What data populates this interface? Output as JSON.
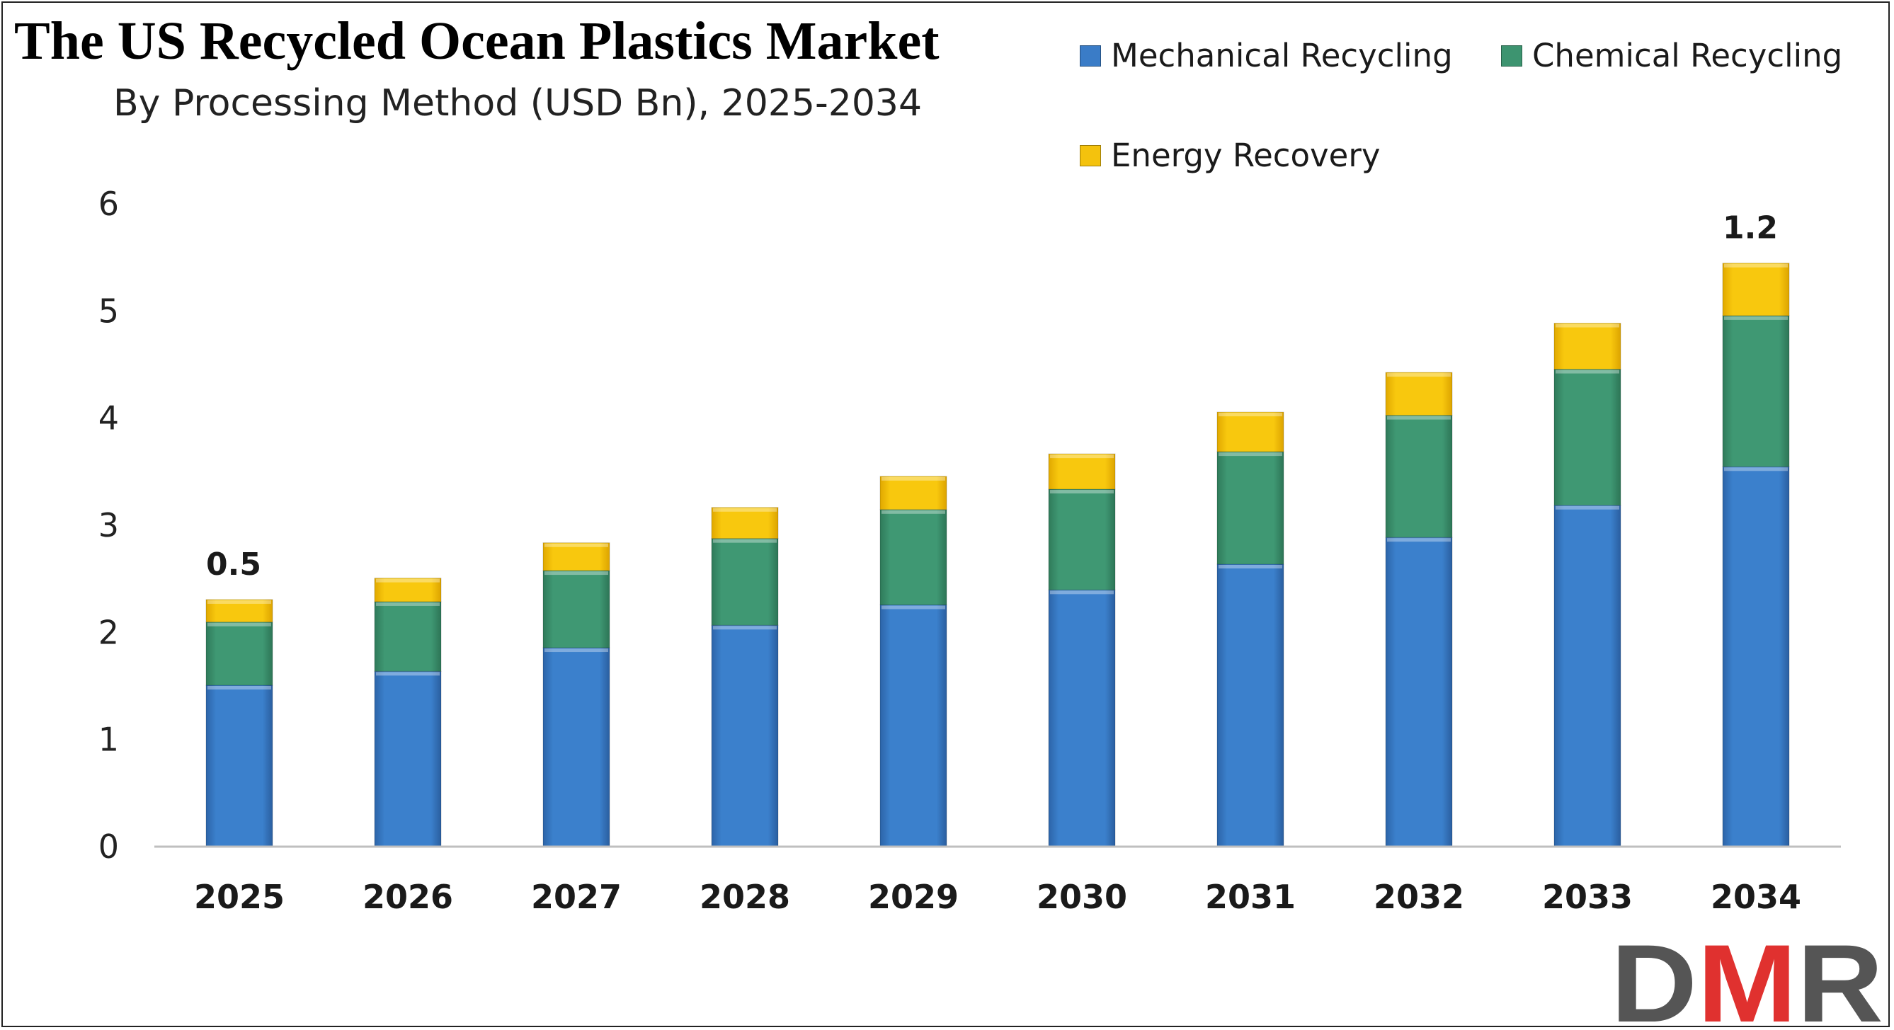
{
  "title": "The US Recycled Ocean Plastics Market",
  "subtitle": "By Processing Method (USD Bn), 2025-2034",
  "logo_text": "DMR",
  "colors": {
    "mechanical": "#3a7cc7",
    "chemical": "#3d9470",
    "energy": "#f4c20d",
    "axis": "#bfbfbf",
    "logo_dark": "#555555",
    "logo_red": "#e0312f"
  },
  "chart_data": {
    "type": "bar",
    "stacked": true,
    "categories": [
      "2025",
      "2026",
      "2027",
      "2028",
      "2029",
      "2030",
      "2031",
      "2032",
      "2033",
      "2034"
    ],
    "series": [
      {
        "name": "Mechanical Recycling",
        "values": [
          1.5,
          1.63,
          1.85,
          2.06,
          2.25,
          2.39,
          2.63,
          2.88,
          3.18,
          3.54
        ]
      },
      {
        "name": "Chemical Recycling",
        "values": [
          0.59,
          0.65,
          0.72,
          0.81,
          0.89,
          0.94,
          1.05,
          1.14,
          1.27,
          1.41
        ]
      },
      {
        "name": "Energy Recovery",
        "values": [
          0.21,
          0.22,
          0.26,
          0.29,
          0.31,
          0.33,
          0.37,
          0.4,
          0.43,
          0.49
        ]
      }
    ],
    "data_labels": [
      {
        "category": "2025",
        "text": "0.5"
      },
      {
        "category": "2034",
        "text": "1.2"
      }
    ],
    "ylim": [
      0,
      6
    ],
    "yticks": [
      0,
      1,
      2,
      3,
      4,
      5,
      6
    ],
    "grid": false,
    "legend_position": "top-right",
    "xlabel": "",
    "ylabel": ""
  }
}
